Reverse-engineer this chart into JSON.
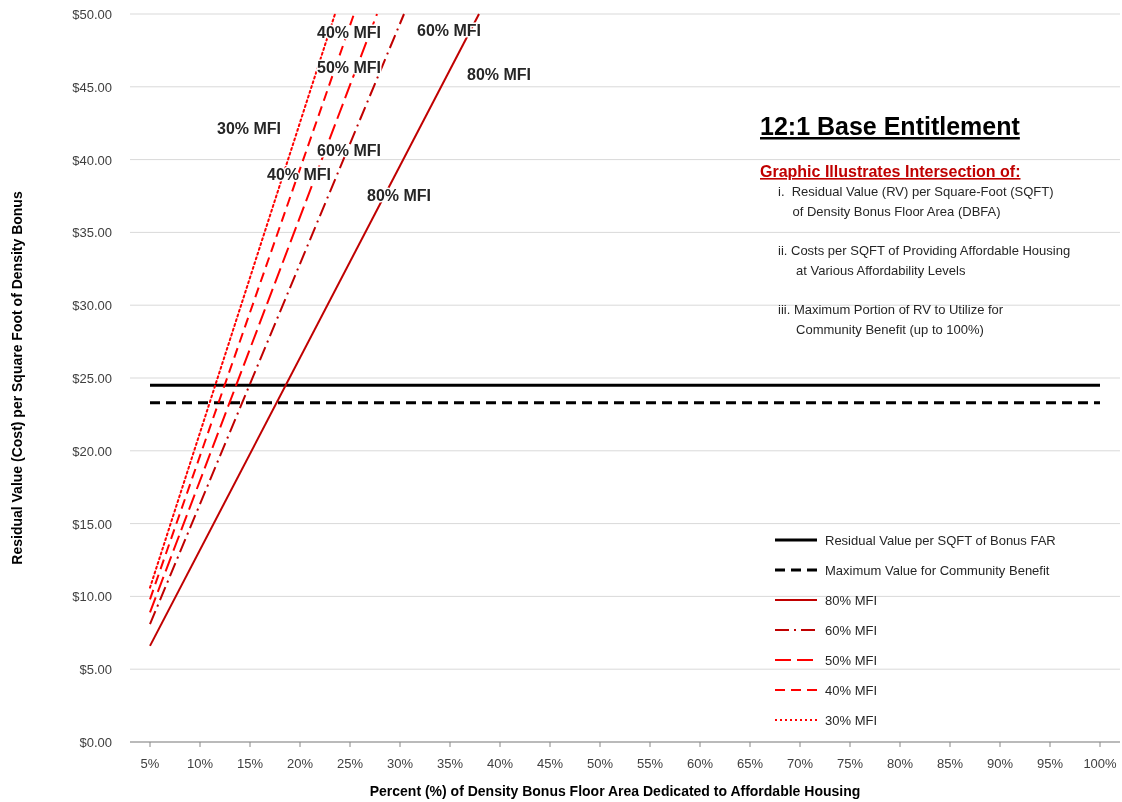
{
  "chart_data": {
    "type": "line",
    "title": "12:1 Base Entitlement",
    "subtitle": "Graphic Illustrates Intersection of:",
    "xlabel": "Percent (%) of Density Bonus Floor Area Dedicated to Affordable Housing",
    "ylabel": "Residual Value (Cost) per Square Foot of Density Bonus",
    "xlim": [
      3,
      102
    ],
    "xticks": [
      {
        "value": 5,
        "label": "5%"
      },
      {
        "value": 10,
        "label": "10%"
      },
      {
        "value": 15,
        "label": "15%"
      },
      {
        "value": 20,
        "label": "20%"
      },
      {
        "value": 25,
        "label": "25%"
      },
      {
        "value": 30,
        "label": "30%"
      },
      {
        "value": 35,
        "label": "35%"
      },
      {
        "value": 40,
        "label": "40%"
      },
      {
        "value": 45,
        "label": "45%"
      },
      {
        "value": 50,
        "label": "50%"
      },
      {
        "value": 55,
        "label": "55%"
      },
      {
        "value": 60,
        "label": "60%"
      },
      {
        "value": 65,
        "label": "65%"
      },
      {
        "value": 70,
        "label": "70%"
      },
      {
        "value": 75,
        "label": "75%"
      },
      {
        "value": 80,
        "label": "80%"
      },
      {
        "value": 85,
        "label": "85%"
      },
      {
        "value": 90,
        "label": "90%"
      },
      {
        "value": 95,
        "label": "95%"
      },
      {
        "value": 100,
        "label": "100%"
      }
    ],
    "ylim": [
      0,
      50
    ],
    "yticks": [
      {
        "value": 0,
        "label": "$0.00"
      },
      {
        "value": 5,
        "label": "$5.00"
      },
      {
        "value": 10,
        "label": "$10.00"
      },
      {
        "value": 15,
        "label": "$15.00"
      },
      {
        "value": 20,
        "label": "$20.00"
      },
      {
        "value": 25,
        "label": "$25.00"
      },
      {
        "value": 30,
        "label": "$30.00"
      },
      {
        "value": 35,
        "label": "$35.00"
      },
      {
        "value": 40,
        "label": "$40.00"
      },
      {
        "value": 45,
        "label": "$45.00"
      },
      {
        "value": 50,
        "label": "$50.00"
      }
    ],
    "grid": "y",
    "legend": "bottom right",
    "marker": "none",
    "series": [
      {
        "name": "Residual Value per SQFT of Bonus FAR",
        "color": "#000000",
        "line_style": "solid",
        "x": [
          5,
          100
        ],
        "values": [
          24.5,
          24.5
        ]
      },
      {
        "name": "Maximum Value for Community Benefit",
        "color": "#000000",
        "line_style": "dashed",
        "x": [
          5,
          100
        ],
        "values": [
          23.3,
          23.3
        ]
      },
      {
        "name": "80% MFI",
        "color": "#c00000",
        "line_style": "solid",
        "x": [
          5,
          37.9
        ],
        "values": [
          6.6,
          50
        ]
      },
      {
        "name": "60% MFI",
        "color": "#c00000",
        "line_style": "dashdot",
        "x": [
          5,
          30.4
        ],
        "values": [
          8.1,
          50
        ]
      },
      {
        "name": "50% MFI",
        "color": "#ff0000",
        "line_style": "longdash",
        "x": [
          5,
          27.7
        ],
        "values": [
          8.9,
          50
        ]
      },
      {
        "name": "40% MFI",
        "color": "#ff0000",
        "line_style": "dashed",
        "x": [
          5,
          25.4
        ],
        "values": [
          9.8,
          50
        ]
      },
      {
        "name": "30% MFI",
        "color": "#ff0000",
        "line_style": "dotted",
        "x": [
          5,
          23.5
        ],
        "values": [
          10.6,
          50
        ]
      }
    ],
    "annotations": [
      "40% MFI",
      "60% MFI",
      "50% MFI",
      "80% MFI",
      "30% MFI",
      "60% MFI",
      "40% MFI",
      "80% MFI",
      "i.  Residual Value (RV) per Square-Foot (SQFT)\n    of Density Bonus Floor Area (DBFA)",
      "ii. Costs per SQFT of Providing Affordable Housing\n     at Various Affordability Levels",
      "iii. Maximum Portion of RV to Utilize for\n     Community Benefit (up to 100%)"
    ]
  }
}
